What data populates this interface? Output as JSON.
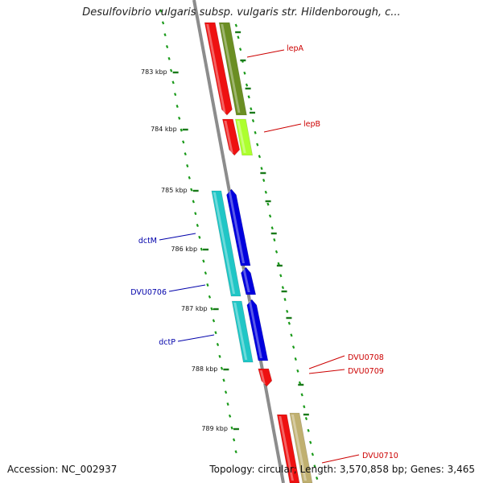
{
  "title": "Desulfovibrio vulgaris subsp. vulgaris str. Hildenborough, c...",
  "footer": {
    "accession": "Accession: NC_002937",
    "summary": "Topology: circular; Length: 3,570,858 bp; Genes: 3,465"
  },
  "colors": {
    "backbone": "#8c8c8c",
    "tick_major": "#1a7a1a",
    "tick_minor": "#1a9a1a",
    "label_red": "#cc0000",
    "label_blue": "#0000aa"
  },
  "ticks": [
    {
      "label": "783 kbp"
    },
    {
      "label": "784 kbp"
    },
    {
      "label": "785 kbp"
    },
    {
      "label": "786 kbp"
    },
    {
      "label": "787 kbp"
    },
    {
      "label": "788 kbp"
    },
    {
      "label": "789 kbp"
    }
  ],
  "genes": [
    {
      "name": "lepA",
      "label_color": "#cc0000"
    },
    {
      "name": "lepB",
      "label_color": "#cc0000"
    },
    {
      "name": "dctM",
      "label_color": "#0000aa"
    },
    {
      "name": "DVU0706",
      "label_color": "#0000aa"
    },
    {
      "name": "dctP",
      "label_color": "#0000aa"
    },
    {
      "name": "DVU0708",
      "label_color": "#cc0000"
    },
    {
      "name": "DVU0709",
      "label_color": "#cc0000"
    },
    {
      "name": "DVU0710",
      "label_color": "#cc0000"
    }
  ]
}
